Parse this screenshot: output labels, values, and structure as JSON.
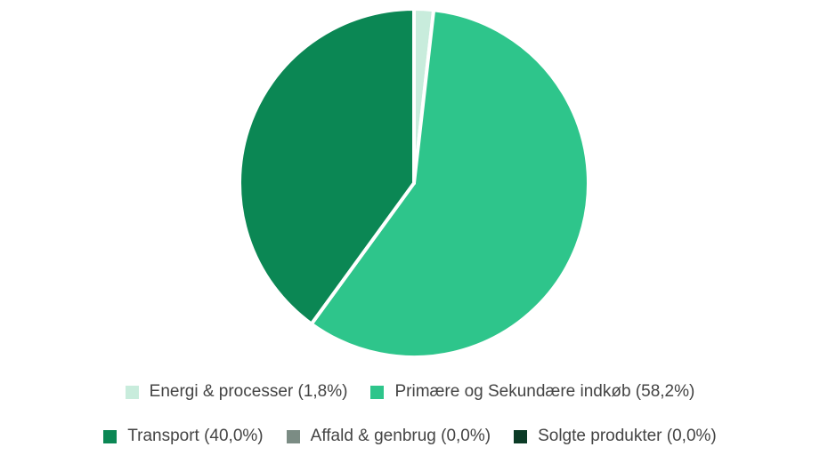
{
  "chart_data": {
    "type": "pie",
    "categories": [
      "Energi & processer (1,8%)",
      "Primære og Sekundære indkøb (58,2%)",
      "Transport (40,0%)",
      "Affald & genbrug (0,0%)",
      "Solgte produkter (0,0%)"
    ],
    "values": [
      1.8,
      58.2,
      40.0,
      0,
      0
    ],
    "colors": [
      "#c8ecdc",
      "#2ec58b",
      "#0b8754",
      "#7b8c84",
      "#0b3b26"
    ]
  }
}
